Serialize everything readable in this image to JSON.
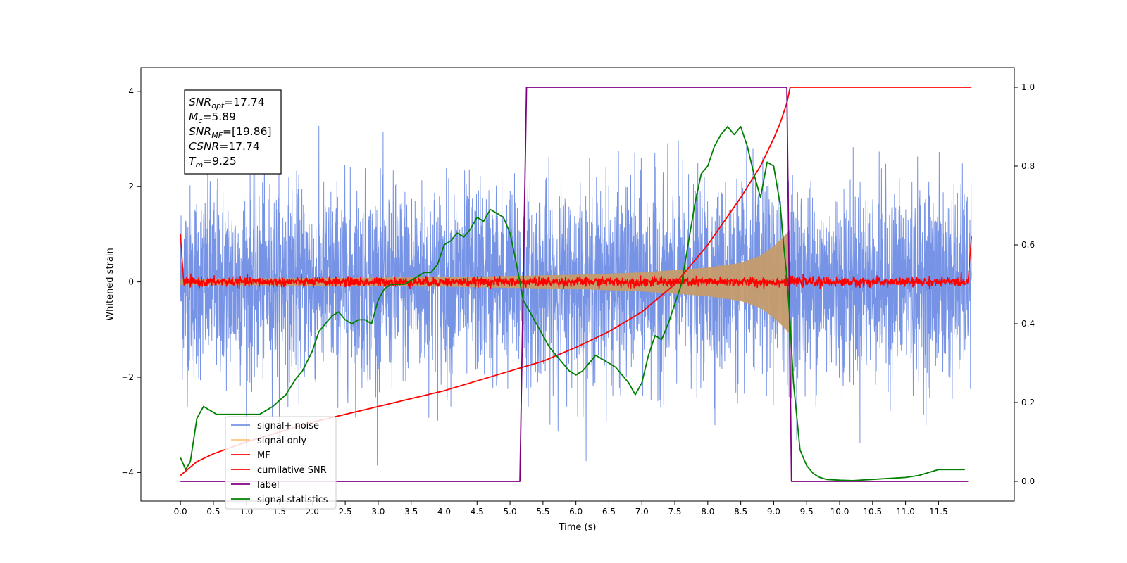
{
  "chart_data": {
    "type": "line",
    "xlabel": "Time (s)",
    "ylabel_left": "Whitened strain",
    "xlim": [
      -0.6,
      12.65
    ],
    "ylim_left": [
      -4.6,
      4.5
    ],
    "ylim_right": [
      -0.05,
      1.05
    ],
    "x_ticks": [
      0.0,
      0.5,
      1.0,
      1.5,
      2.0,
      2.5,
      3.0,
      3.5,
      4.0,
      4.5,
      5.0,
      5.5,
      6.0,
      6.5,
      7.0,
      7.5,
      8.0,
      8.5,
      9.0,
      9.5,
      10.0,
      10.5,
      11.0,
      11.5
    ],
    "x_tick_labels": [
      "0.0",
      "0.5",
      "1.0",
      "1.5",
      "2.0",
      "2.5",
      "3.0",
      "3.5",
      "4.0",
      "4.5",
      "5.0",
      "5.5",
      "6.0",
      "6.5",
      "7.0",
      "7.5",
      "8.0",
      "8.5",
      "9.0",
      "9.5",
      "10.0",
      "10.5",
      "11.0",
      "11.5"
    ],
    "y_left_ticks": [
      -4,
      -2,
      0,
      2,
      4
    ],
    "y_left_tick_labels": [
      "−4",
      "−2",
      "0",
      "2",
      "4"
    ],
    "y_right_ticks": [
      0.0,
      0.2,
      0.4,
      0.6,
      0.8,
      1.0
    ],
    "y_right_tick_labels": [
      "0.0",
      "0.2",
      "0.4",
      "0.6",
      "0.8",
      "1.0"
    ],
    "legend_position": "lower-left",
    "grid": false,
    "annotation_box": {
      "lines": [
        {
          "sym": "SNR",
          "sub": "opt",
          "val": "=17.74"
        },
        {
          "sym": "M",
          "sub": "c",
          "val": "=5.89"
        },
        {
          "sym": "SNR",
          "sub": "MF",
          "val": "=[19.86]"
        },
        {
          "sym": "CSNR",
          "sub": "",
          "val": "=17.74"
        },
        {
          "sym": "T",
          "sub": "m",
          "val": "=9.25"
        }
      ]
    },
    "series": [
      {
        "name": "signal+ noise",
        "axis": "left",
        "color": "#7693e6",
        "kind": "noise",
        "t_start": 0.0,
        "t_end": 12.0,
        "sigma": 1.0,
        "amplitude_range": [
          -3.85,
          3.55
        ],
        "signal_envelope_peak": 1.1,
        "signal_end": 9.25
      },
      {
        "name": "signal only",
        "axis": "left",
        "color": "#ffc87a",
        "fill_color": "#c59b6b",
        "kind": "chirp_envelope",
        "t_start": 0.0,
        "t_end": 9.25,
        "envelope": [
          [
            0.0,
            0.06
          ],
          [
            2.0,
            0.08
          ],
          [
            4.0,
            0.1
          ],
          [
            6.0,
            0.15
          ],
          [
            7.0,
            0.2
          ],
          [
            8.0,
            0.3
          ],
          [
            8.5,
            0.4
          ],
          [
            8.8,
            0.55
          ],
          [
            9.0,
            0.75
          ],
          [
            9.15,
            0.95
          ],
          [
            9.25,
            1.1
          ]
        ]
      },
      {
        "name": "MF",
        "axis": "left",
        "color": "#ff0000",
        "kind": "mf_noise",
        "t_start": 0.0,
        "t_end": 12.0,
        "baseline": 0.0,
        "sigma": 0.05,
        "edge_points": [
          [
            0.0,
            1.0
          ],
          [
            0.05,
            0.0
          ],
          [
            11.95,
            0.0
          ],
          [
            12.0,
            0.95
          ]
        ]
      },
      {
        "name": "cumilative SNR",
        "axis": "right",
        "color": "#ff0000",
        "x": [
          0.0,
          0.25,
          0.5,
          1.0,
          1.5,
          2.0,
          2.5,
          3.0,
          3.5,
          4.0,
          4.5,
          5.0,
          5.5,
          6.0,
          6.5,
          7.0,
          7.5,
          8.0,
          8.5,
          8.8,
          9.0,
          9.1,
          9.2,
          9.25,
          9.3,
          12.0
        ],
        "values": [
          0.015,
          0.05,
          0.07,
          0.1,
          0.125,
          0.15,
          0.17,
          0.19,
          0.21,
          0.23,
          0.255,
          0.28,
          0.305,
          0.34,
          0.38,
          0.43,
          0.5,
          0.6,
          0.72,
          0.8,
          0.87,
          0.91,
          0.96,
          1.0,
          1.0,
          1.0
        ]
      },
      {
        "name": "label",
        "axis": "right",
        "color": "#800080",
        "x": [
          0.0,
          5.15,
          5.25,
          9.2,
          9.27,
          11.95
        ],
        "values": [
          0.0,
          0.0,
          1.0,
          1.0,
          0.0,
          0.0
        ]
      },
      {
        "name": "signal statistics",
        "axis": "right",
        "color": "#008000",
        "x": [
          0.0,
          0.08,
          0.15,
          0.25,
          0.35,
          0.45,
          0.55,
          0.7,
          0.85,
          1.0,
          1.2,
          1.4,
          1.6,
          1.75,
          1.85,
          2.0,
          2.1,
          2.2,
          2.3,
          2.4,
          2.5,
          2.6,
          2.7,
          2.8,
          2.9,
          3.0,
          3.1,
          3.2,
          3.3,
          3.4,
          3.5,
          3.6,
          3.7,
          3.8,
          3.9,
          4.0,
          4.1,
          4.2,
          4.3,
          4.4,
          4.5,
          4.6,
          4.7,
          4.8,
          4.9,
          5.0,
          5.1,
          5.2,
          5.3,
          5.4,
          5.5,
          5.6,
          5.7,
          5.8,
          5.9,
          6.0,
          6.1,
          6.2,
          6.3,
          6.4,
          6.5,
          6.6,
          6.7,
          6.8,
          6.9,
          7.0,
          7.1,
          7.2,
          7.3,
          7.4,
          7.5,
          7.6,
          7.7,
          7.8,
          7.9,
          8.0,
          8.1,
          8.2,
          8.3,
          8.4,
          8.5,
          8.6,
          8.7,
          8.8,
          8.9,
          9.0,
          9.1,
          9.15,
          9.2,
          9.25,
          9.3,
          9.4,
          9.5,
          9.6,
          9.7,
          9.8,
          10.0,
          10.2,
          10.5,
          11.0,
          11.2,
          11.4,
          11.5,
          11.7,
          11.9
        ],
        "values": [
          0.06,
          0.03,
          0.05,
          0.16,
          0.19,
          0.18,
          0.17,
          0.17,
          0.17,
          0.17,
          0.17,
          0.19,
          0.22,
          0.26,
          0.28,
          0.33,
          0.38,
          0.4,
          0.42,
          0.43,
          0.41,
          0.4,
          0.41,
          0.41,
          0.4,
          0.46,
          0.49,
          0.5,
          0.5,
          0.5,
          0.51,
          0.52,
          0.53,
          0.53,
          0.55,
          0.6,
          0.61,
          0.63,
          0.62,
          0.64,
          0.67,
          0.66,
          0.69,
          0.68,
          0.67,
          0.63,
          0.55,
          0.46,
          0.43,
          0.4,
          0.37,
          0.34,
          0.32,
          0.3,
          0.28,
          0.27,
          0.28,
          0.3,
          0.32,
          0.31,
          0.3,
          0.29,
          0.27,
          0.25,
          0.22,
          0.25,
          0.32,
          0.37,
          0.36,
          0.4,
          0.45,
          0.5,
          0.6,
          0.7,
          0.78,
          0.8,
          0.85,
          0.88,
          0.9,
          0.88,
          0.9,
          0.85,
          0.78,
          0.72,
          0.81,
          0.8,
          0.7,
          0.6,
          0.52,
          0.4,
          0.25,
          0.08,
          0.04,
          0.02,
          0.01,
          0.005,
          0.003,
          0.002,
          0.005,
          0.01,
          0.015,
          0.025,
          0.03,
          0.03,
          0.03
        ]
      }
    ]
  }
}
